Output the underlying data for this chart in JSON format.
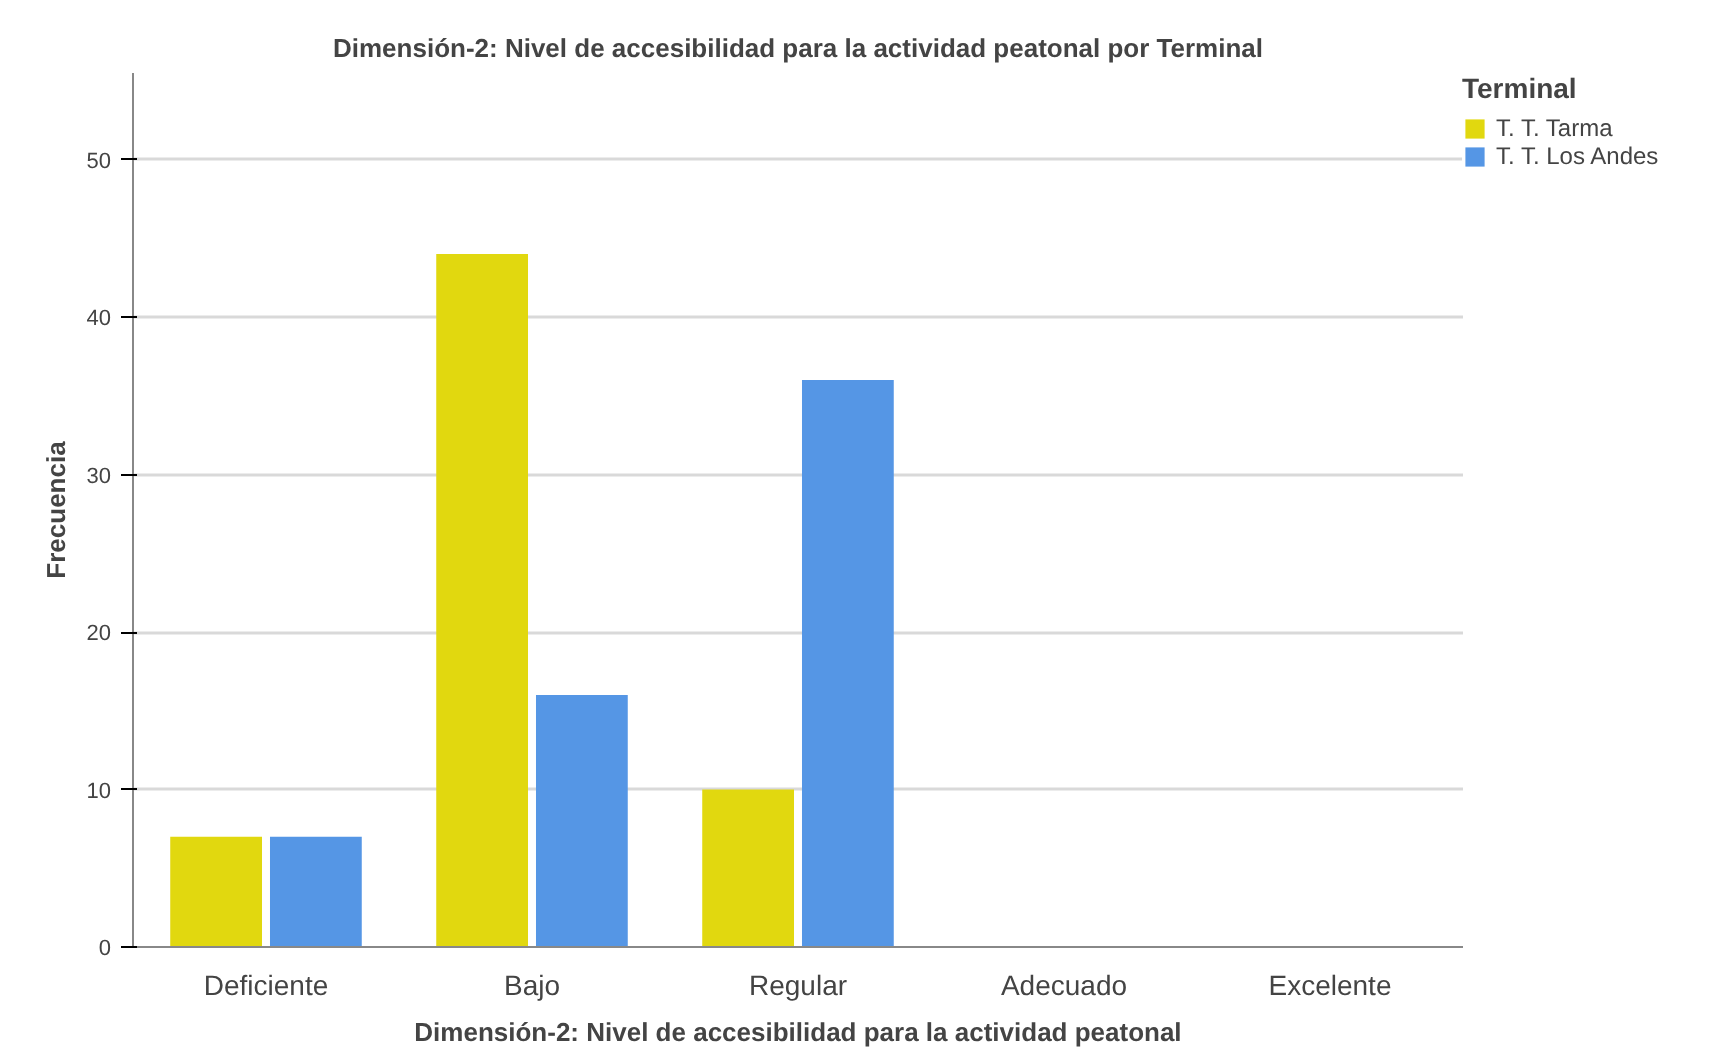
{
  "chart_data": {
    "type": "bar",
    "title": "Dimensión-2: Nivel de accesibilidad para la actividad peatonal por Terminal",
    "xlabel": "Dimensión-2: Nivel de accesibilidad para la actividad peatonal",
    "ylabel": "Frecuencia",
    "legend_title": "Terminal",
    "categories": [
      "Deficiente",
      "Bajo",
      "Regular",
      "Adecuado",
      "Excelente"
    ],
    "series": [
      {
        "name": "T. T. Tarma",
        "color": "#e1d80f",
        "values": [
          7,
          44,
          10,
          0,
          0
        ]
      },
      {
        "name": "T. T. Los Andes",
        "color": "#5596e5",
        "values": [
          7,
          16,
          36,
          0,
          0
        ]
      }
    ],
    "ylim": [
      0,
      55.5
    ],
    "yticks": [
      0,
      10,
      20,
      30,
      40,
      50
    ],
    "grid": "y",
    "legend": "top right"
  }
}
